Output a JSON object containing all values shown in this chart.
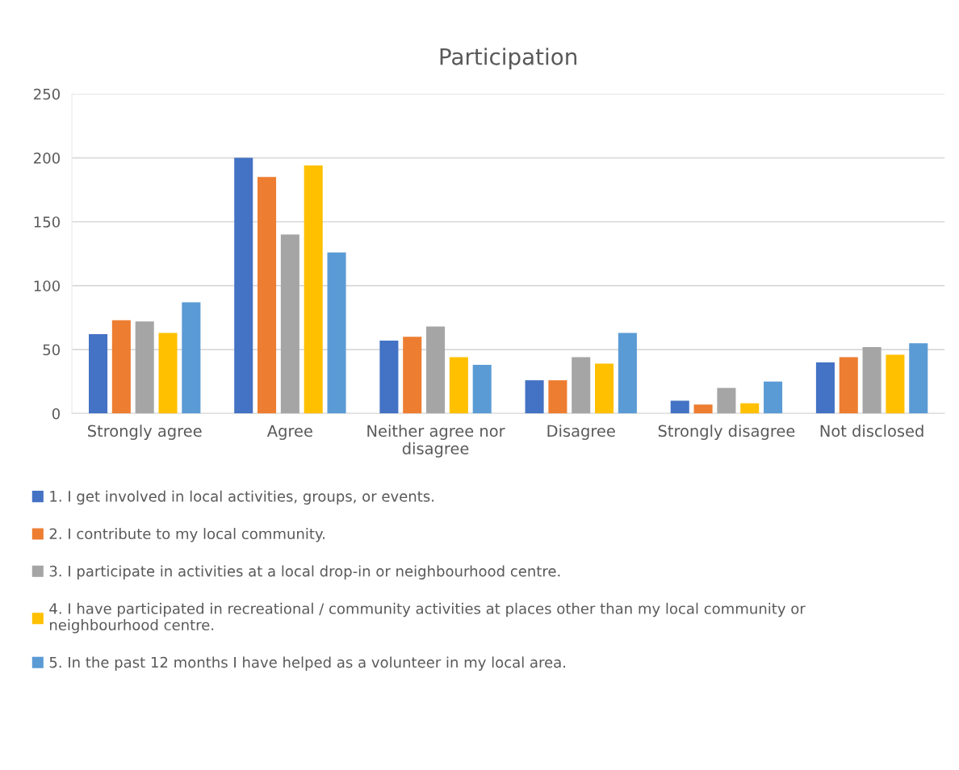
{
  "chart_data": {
    "type": "bar",
    "title": "Participation",
    "categories": [
      "Strongly agree",
      "Agree",
      "Neither agree nor disagree",
      "Disagree",
      "Strongly disagree",
      "Not disclosed"
    ],
    "series": [
      {
        "name": "1. I get involved in local activities, groups, or events.",
        "color": "#4472c4",
        "values": [
          62,
          200,
          57,
          26,
          10,
          40
        ]
      },
      {
        "name": "2. I contribute to my local community.",
        "color": "#ed7d31",
        "values": [
          73,
          185,
          60,
          26,
          7,
          44
        ]
      },
      {
        "name": "3. I participate in activities at a local drop-in or neighbourhood centre.",
        "color": "#a5a5a5",
        "values": [
          72,
          140,
          68,
          44,
          20,
          52
        ]
      },
      {
        "name": "4. I have participated in recreational / community activities at places other than my local community or neighbourhood centre.",
        "color": "#ffc000",
        "values": [
          63,
          194,
          44,
          39,
          8,
          46
        ]
      },
      {
        "name": "5. In the past 12 months I have helped as a volunteer in my local area.",
        "color": "#5b9bd5",
        "values": [
          87,
          126,
          38,
          63,
          25,
          55
        ]
      }
    ],
    "ylim": [
      0,
      250
    ],
    "yticks": [
      0,
      50,
      100,
      150,
      200,
      250
    ],
    "grid": "y",
    "legend": "bottom"
  }
}
